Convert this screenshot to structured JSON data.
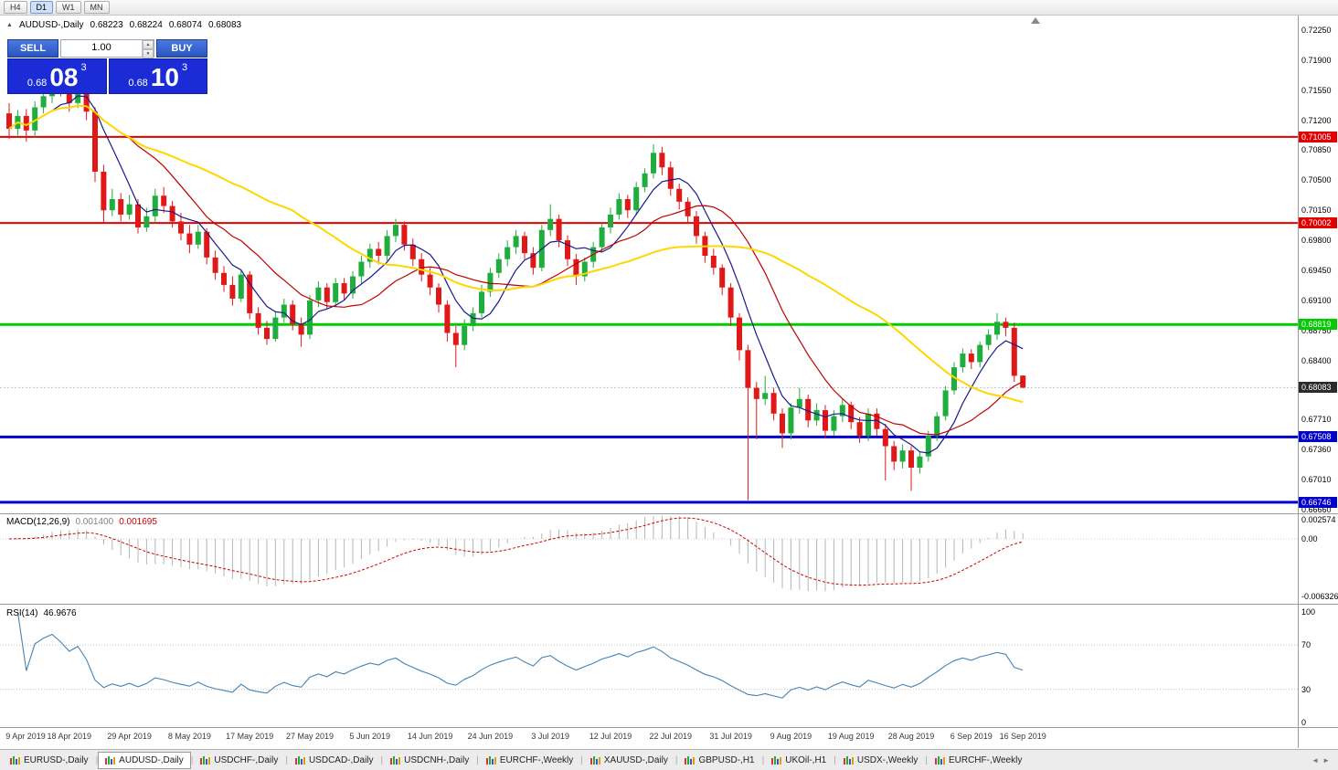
{
  "colors": {
    "up": "#1fae3d",
    "down": "#e01818",
    "ma_fast": "#1a1a8c",
    "ma_mid": "#c00000",
    "ma_slow": "#ffd700",
    "macd_hist": "#b0b6bd",
    "macd_signal": "#d00000",
    "rsi": "#4682b4",
    "current_tag": "#2a2a2a"
  },
  "toolbar": {
    "timeframes": [
      {
        "label": "H4",
        "active": false
      },
      {
        "label": "D1",
        "active": true
      },
      {
        "label": "W1",
        "active": false
      },
      {
        "label": "MN",
        "active": false
      }
    ]
  },
  "chart_info": {
    "symbol": "AUDUSD-,Daily",
    "open": "0.68223",
    "high": "0.68224",
    "low": "0.68074",
    "close": "0.68083"
  },
  "trade_panel": {
    "sell": "SELL",
    "buy": "BUY",
    "volume": "1.00",
    "bid_prefix": "0.68",
    "bid_big": "08",
    "bid_sup": "3",
    "ask_prefix": "0.68",
    "ask_big": "10",
    "ask_sup": "3"
  },
  "price_axis": {
    "labels": [
      "0.72250",
      "0.71900",
      "0.71550",
      "0.71200",
      "0.70850",
      "0.70500",
      "0.70150",
      "0.69800",
      "0.69450",
      "0.69100",
      "0.68750",
      "0.68400",
      "0.67710",
      "0.67360",
      "0.67010",
      "0.66660"
    ]
  },
  "levels": [
    {
      "price": 0.71005,
      "label": "0.71005",
      "color": "#e00000",
      "width": 2
    },
    {
      "price": 0.70002,
      "label": "0.70002",
      "color": "#e00000",
      "width": 2
    },
    {
      "price": 0.68819,
      "label": "0.68819",
      "color": "#00cc00",
      "width": 3
    },
    {
      "price": 0.67508,
      "label": "0.67508",
      "color": "#0000cc",
      "width": 3
    },
    {
      "price": 0.66746,
      "label": "0.66746",
      "color": "#0000cc",
      "width": 3
    }
  ],
  "current_price": {
    "price": 0.68083,
    "label": "0.68083"
  },
  "chart_data": {
    "type": "candlestick",
    "title": "AUDUSD-,Daily",
    "symbol": "AUDUSD",
    "timeframe": "Daily",
    "price_range": [
      0.6664,
      0.7242
    ],
    "moving_averages": [
      {
        "period": 6,
        "color_key": "ma_fast",
        "width": 1.2
      },
      {
        "period": 14,
        "color_key": "ma_mid",
        "width": 1.2
      },
      {
        "period": 34,
        "color_key": "ma_slow",
        "width": 2
      }
    ],
    "ohlc": [
      [
        0.7128,
        0.714,
        0.7098,
        0.711
      ],
      [
        0.711,
        0.7132,
        0.7102,
        0.7125
      ],
      [
        0.7125,
        0.7133,
        0.7095,
        0.7108
      ],
      [
        0.7108,
        0.7142,
        0.71,
        0.7135
      ],
      [
        0.7135,
        0.7158,
        0.7128,
        0.7148
      ],
      [
        0.7148,
        0.7175,
        0.714,
        0.716
      ],
      [
        0.716,
        0.7183,
        0.7148,
        0.7152
      ],
      [
        0.7152,
        0.7162,
        0.713,
        0.714
      ],
      [
        0.714,
        0.7168,
        0.7134,
        0.7155
      ],
      [
        0.7155,
        0.716,
        0.712,
        0.713
      ],
      [
        0.713,
        0.7135,
        0.7048,
        0.706
      ],
      [
        0.706,
        0.7068,
        0.7,
        0.7015
      ],
      [
        0.7015,
        0.704,
        0.7008,
        0.7028
      ],
      [
        0.7028,
        0.7035,
        0.7002,
        0.701
      ],
      [
        0.701,
        0.7033,
        0.7004,
        0.7022
      ],
      [
        0.7022,
        0.7028,
        0.6988,
        0.6995
      ],
      [
        0.6995,
        0.7018,
        0.699,
        0.7008
      ],
      [
        0.7008,
        0.704,
        0.7,
        0.7032
      ],
      [
        0.7032,
        0.7042,
        0.7012,
        0.702
      ],
      [
        0.702,
        0.7026,
        0.6995,
        0.7002
      ],
      [
        0.7002,
        0.7012,
        0.698,
        0.6988
      ],
      [
        0.6988,
        0.6998,
        0.6965,
        0.6975
      ],
      [
        0.6975,
        0.6998,
        0.697,
        0.699
      ],
      [
        0.699,
        0.6994,
        0.6952,
        0.696
      ],
      [
        0.696,
        0.6968,
        0.6934,
        0.6942
      ],
      [
        0.6942,
        0.695,
        0.692,
        0.6928
      ],
      [
        0.6928,
        0.6938,
        0.6904,
        0.6912
      ],
      [
        0.6912,
        0.6945,
        0.6908,
        0.694
      ],
      [
        0.694,
        0.6944,
        0.6888,
        0.6895
      ],
      [
        0.6895,
        0.6902,
        0.687,
        0.6878
      ],
      [
        0.6878,
        0.6886,
        0.6858,
        0.6865
      ],
      [
        0.6865,
        0.6897,
        0.6862,
        0.689
      ],
      [
        0.689,
        0.6912,
        0.6884,
        0.6905
      ],
      [
        0.6905,
        0.691,
        0.6875,
        0.6882
      ],
      [
        0.6882,
        0.689,
        0.6856,
        0.687
      ],
      [
        0.687,
        0.6916,
        0.6865,
        0.691
      ],
      [
        0.691,
        0.6932,
        0.6902,
        0.6925
      ],
      [
        0.6925,
        0.693,
        0.69,
        0.6908
      ],
      [
        0.6908,
        0.6936,
        0.6902,
        0.693
      ],
      [
        0.693,
        0.6936,
        0.691,
        0.6918
      ],
      [
        0.6918,
        0.6944,
        0.6912,
        0.6938
      ],
      [
        0.6938,
        0.6962,
        0.693,
        0.6955
      ],
      [
        0.6955,
        0.6976,
        0.6948,
        0.697
      ],
      [
        0.697,
        0.6978,
        0.6952,
        0.6962
      ],
      [
        0.6962,
        0.6992,
        0.6956,
        0.6985
      ],
      [
        0.6985,
        0.7005,
        0.6978,
        0.6998
      ],
      [
        0.6998,
        0.7002,
        0.6968,
        0.6975
      ],
      [
        0.6975,
        0.6982,
        0.695,
        0.6958
      ],
      [
        0.6958,
        0.6965,
        0.6932,
        0.694
      ],
      [
        0.694,
        0.6948,
        0.6916,
        0.6925
      ],
      [
        0.6925,
        0.693,
        0.6896,
        0.6905
      ],
      [
        0.6905,
        0.691,
        0.6862,
        0.6872
      ],
      [
        0.6872,
        0.688,
        0.6832,
        0.6858
      ],
      [
        0.6858,
        0.6888,
        0.6852,
        0.688
      ],
      [
        0.688,
        0.6902,
        0.6874,
        0.6895
      ],
      [
        0.6895,
        0.6928,
        0.689,
        0.692
      ],
      [
        0.692,
        0.6948,
        0.6914,
        0.6942
      ],
      [
        0.6942,
        0.6965,
        0.6936,
        0.6958
      ],
      [
        0.6958,
        0.698,
        0.695,
        0.6972
      ],
      [
        0.6972,
        0.6992,
        0.6964,
        0.6985
      ],
      [
        0.6985,
        0.699,
        0.6958,
        0.6965
      ],
      [
        0.6965,
        0.6972,
        0.694,
        0.6948
      ],
      [
        0.6948,
        0.6998,
        0.6944,
        0.6992
      ],
      [
        0.6992,
        0.7022,
        0.6985,
        0.7005
      ],
      [
        0.7005,
        0.701,
        0.6972,
        0.698
      ],
      [
        0.698,
        0.6986,
        0.695,
        0.6958
      ],
      [
        0.6958,
        0.6964,
        0.6928,
        0.6938
      ],
      [
        0.6938,
        0.696,
        0.6932,
        0.6955
      ],
      [
        0.6955,
        0.6978,
        0.6948,
        0.6972
      ],
      [
        0.6972,
        0.7,
        0.6966,
        0.6995
      ],
      [
        0.6995,
        0.7018,
        0.6988,
        0.701
      ],
      [
        0.701,
        0.7035,
        0.7004,
        0.7028
      ],
      [
        0.7028,
        0.7033,
        0.7006,
        0.7015
      ],
      [
        0.7015,
        0.7048,
        0.701,
        0.7042
      ],
      [
        0.7042,
        0.7064,
        0.7036,
        0.7058
      ],
      [
        0.7058,
        0.7092,
        0.7052,
        0.7082
      ],
      [
        0.7082,
        0.7089,
        0.7056,
        0.7065
      ],
      [
        0.7065,
        0.7072,
        0.7032,
        0.704
      ],
      [
        0.704,
        0.7046,
        0.7016,
        0.7025
      ],
      [
        0.7025,
        0.703,
        0.7,
        0.7008
      ],
      [
        0.7008,
        0.7014,
        0.6976,
        0.6985
      ],
      [
        0.6985,
        0.699,
        0.6954,
        0.6962
      ],
      [
        0.6962,
        0.697,
        0.694,
        0.6948
      ],
      [
        0.6948,
        0.6952,
        0.6916,
        0.6925
      ],
      [
        0.6925,
        0.693,
        0.688,
        0.689
      ],
      [
        0.689,
        0.6895,
        0.684,
        0.6852
      ],
      [
        0.6852,
        0.6858,
        0.6677,
        0.6808
      ],
      [
        0.6808,
        0.6815,
        0.6748,
        0.6795
      ],
      [
        0.6795,
        0.6822,
        0.6788,
        0.6802
      ],
      [
        0.6802,
        0.6808,
        0.677,
        0.6778
      ],
      [
        0.6778,
        0.6784,
        0.6738,
        0.6755
      ],
      [
        0.6755,
        0.679,
        0.6748,
        0.6785
      ],
      [
        0.6785,
        0.6808,
        0.6778,
        0.6795
      ],
      [
        0.6795,
        0.68,
        0.6762,
        0.677
      ],
      [
        0.677,
        0.679,
        0.6764,
        0.6782
      ],
      [
        0.6782,
        0.6788,
        0.675,
        0.6758
      ],
      [
        0.6758,
        0.6782,
        0.6752,
        0.6775
      ],
      [
        0.6775,
        0.6795,
        0.6768,
        0.6788
      ],
      [
        0.6788,
        0.6792,
        0.676,
        0.6768
      ],
      [
        0.6768,
        0.6774,
        0.6744,
        0.6752
      ],
      [
        0.6752,
        0.6784,
        0.6746,
        0.6778
      ],
      [
        0.6778,
        0.6784,
        0.6752,
        0.676
      ],
      [
        0.676,
        0.6766,
        0.67,
        0.674
      ],
      [
        0.674,
        0.6746,
        0.6712,
        0.6722
      ],
      [
        0.6722,
        0.6742,
        0.6714,
        0.6735
      ],
      [
        0.6735,
        0.674,
        0.6688,
        0.6715
      ],
      [
        0.6715,
        0.6734,
        0.6708,
        0.6728
      ],
      [
        0.6728,
        0.6758,
        0.6722,
        0.6752
      ],
      [
        0.6752,
        0.678,
        0.6746,
        0.6775
      ],
      [
        0.6775,
        0.681,
        0.677,
        0.6805
      ],
      [
        0.6805,
        0.6838,
        0.68,
        0.6832
      ],
      [
        0.6832,
        0.6854,
        0.6826,
        0.6848
      ],
      [
        0.6848,
        0.6853,
        0.683,
        0.6838
      ],
      [
        0.6838,
        0.6862,
        0.6832,
        0.6858
      ],
      [
        0.6858,
        0.6876,
        0.6852,
        0.687
      ],
      [
        0.687,
        0.6895,
        0.6864,
        0.6885
      ],
      [
        0.6885,
        0.689,
        0.6868,
        0.6878
      ],
      [
        0.6878,
        0.6884,
        0.6815,
        0.6822
      ],
      [
        0.68223,
        0.68224,
        0.68074,
        0.68083
      ]
    ]
  },
  "macd_panel": {
    "name": "MACD(12,26,9)",
    "value_main": "0.001400",
    "value_signal": "0.001695",
    "fast": 12,
    "slow": 26,
    "signal": 9,
    "axis_labels": [
      {
        "text": "0.002574",
        "value": 0.002574
      },
      {
        "text": "0.00",
        "value": 0
      },
      {
        "text": "-0.006326",
        "value": -0.006326
      }
    ]
  },
  "rsi_panel": {
    "name": "RSI(14)",
    "value": "46.9676",
    "period": 14,
    "levels": [
      70,
      30
    ],
    "axis_labels": [
      100,
      70,
      30,
      0
    ]
  },
  "date_axis": {
    "bar_step": 7,
    "labels": [
      "9 Apr 2019",
      "18 Apr 2019",
      "29 Apr 2019",
      "8 May 2019",
      "17 May 2019",
      "27 May 2019",
      "5 Jun 2019",
      "14 Jun 2019",
      "24 Jun 2019",
      "3 Jul 2019",
      "12 Jul 2019",
      "22 Jul 2019",
      "31 Jul 2019",
      "9 Aug 2019",
      "19 Aug 2019",
      "28 Aug 2019",
      "6 Sep 2019",
      "16 Sep 2019"
    ]
  },
  "tabs": {
    "active_index": 1,
    "items": [
      "EURUSD-,Daily",
      "AUDUSD-,Daily",
      "USDCHF-,Daily",
      "USDCAD-,Daily",
      "USDCNH-,Daily",
      "EURCHF-,Weekly",
      "XAUUSD-,Daily",
      "GBPUSD-,H1",
      "UKOil-,H1",
      "USDX-,Weekly",
      "EURCHF-,Weekly"
    ],
    "scroll_left": "◄",
    "scroll_right": "►"
  }
}
